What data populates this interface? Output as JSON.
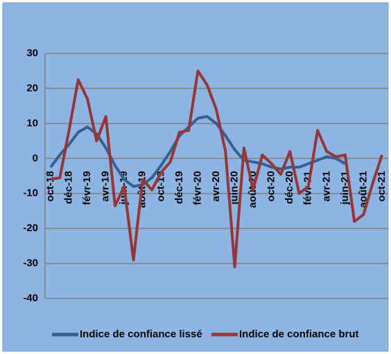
{
  "chart_data": {
    "type": "line",
    "categories": [
      "oct-18",
      null,
      "déc-18",
      null,
      "févr-19",
      null,
      "avr-19",
      null,
      "juin-19",
      null,
      "août-19",
      null,
      "oct-19",
      null,
      "déc-19",
      null,
      "févr-20",
      null,
      "avr-20",
      null,
      "juin-20",
      null,
      "août-20",
      null,
      "oct-20",
      null,
      "déc-20",
      null,
      "févr-21",
      null,
      "avr-21",
      null,
      "juin-21",
      null,
      "août-21",
      null,
      "oct-21"
    ],
    "series": [
      {
        "name": "Indice de confiance lissé",
        "color": "#376092",
        "values": [
          -2.5,
          1,
          4,
          7.5,
          9,
          7,
          3,
          -2,
          -6,
          -8,
          -7.5,
          -5.5,
          -2,
          2,
          6.5,
          9,
          11.5,
          12,
          10,
          6.5,
          2.5,
          -0.5,
          -1,
          -1.5,
          -2.5,
          -3,
          -2.5,
          -2.5,
          -1.5,
          -0.5,
          0.5,
          0,
          -1.5,
          null,
          null,
          null,
          null
        ]
      },
      {
        "name": "Indice de confiance brut",
        "color": "#953735",
        "values": [
          -6,
          -5.5,
          8,
          22.5,
          17,
          5,
          12,
          -13.5,
          -8,
          -29,
          -6,
          -9,
          -4,
          -1,
          7.5,
          8,
          25,
          21,
          14,
          2,
          -31,
          3,
          -9,
          1,
          -1.5,
          -4.5,
          2,
          -10,
          -8,
          8,
          2,
          0.5,
          1,
          -18,
          -16,
          -7,
          1
        ]
      }
    ],
    "ylim": [
      -40,
      30
    ],
    "yticks": [
      -40,
      -30,
      -20,
      -10,
      0,
      10,
      20,
      30
    ],
    "grid": true,
    "legend": "bottom"
  }
}
